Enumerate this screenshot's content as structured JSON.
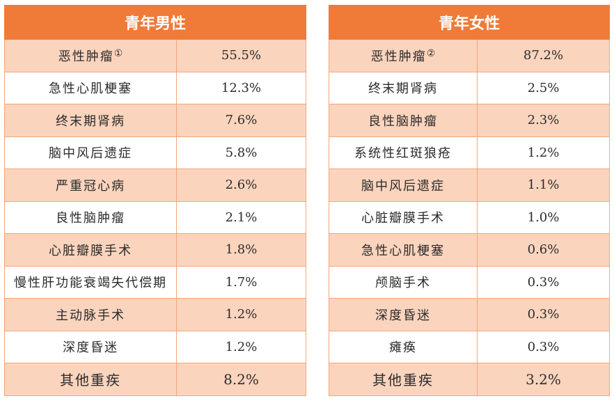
{
  "male": {
    "title": "青年男性",
    "rows": [
      {
        "name": "恶性肿瘤",
        "note": "①",
        "value": "55.5%"
      },
      {
        "name": "急性心肌梗塞",
        "value": "12.3%"
      },
      {
        "name": "终末期肾病",
        "value": "7.6%"
      },
      {
        "name": "脑中风后遗症",
        "value": "5.8%"
      },
      {
        "name": "严重冠心病",
        "value": "2.6%"
      },
      {
        "name": "良性脑肿瘤",
        "value": "2.1%"
      },
      {
        "name": "心脏瓣膜手术",
        "value": "1.8%"
      },
      {
        "name": "慢性肝功能衰竭失代偿期",
        "value": "1.7%"
      },
      {
        "name": "主动脉手术",
        "value": "1.2%"
      },
      {
        "name": "深度昏迷",
        "value": "1.2%"
      },
      {
        "name": "其他重疾",
        "value": "8.2%"
      }
    ]
  },
  "female": {
    "title": "青年女性",
    "rows": [
      {
        "name": "恶性肿瘤",
        "note": "②",
        "value": "87.2%"
      },
      {
        "name": "终末期肾病",
        "value": "2.5%"
      },
      {
        "name": "良性脑肿瘤",
        "value": "2.3%"
      },
      {
        "name": "系统性红斑狼疮",
        "value": "1.2%"
      },
      {
        "name": "脑中风后遗症",
        "value": "1.1%"
      },
      {
        "name": "心脏瓣膜手术",
        "value": "1.0%"
      },
      {
        "name": "急性心肌梗塞",
        "value": "0.6%"
      },
      {
        "name": "颅脑手术",
        "value": "0.3%"
      },
      {
        "name": "深度昏迷",
        "value": "0.3%"
      },
      {
        "name": "瘫痪",
        "value": "0.3%"
      },
      {
        "name": "其他重疾",
        "value": "3.2%"
      }
    ]
  },
  "colors": {
    "header": "#f07a38",
    "band": "#fbd4bd",
    "border": "#f5a57a"
  }
}
